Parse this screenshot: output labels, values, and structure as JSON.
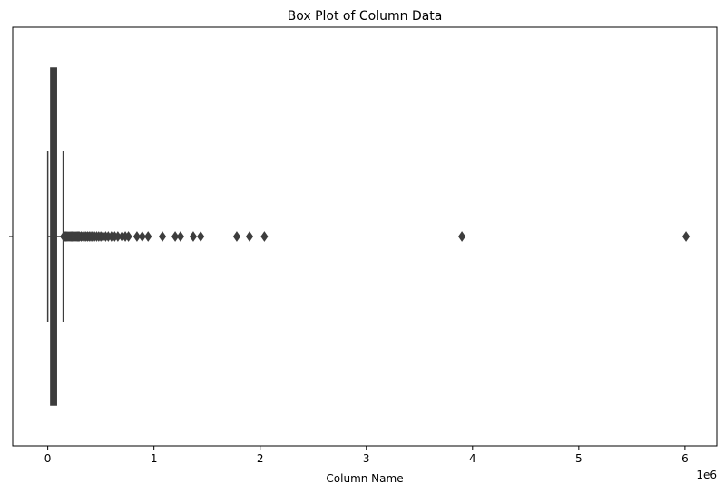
{
  "chart_data": {
    "type": "box",
    "title": "Box Plot of Column Data",
    "xlabel": "Column Name",
    "ylabel": "",
    "x_scale_label": "1e6",
    "xlim": [
      -330000,
      6300000
    ],
    "x_ticks": [
      0,
      1000000,
      2000000,
      3000000,
      4000000,
      5000000,
      6000000
    ],
    "x_tick_labels": [
      "0",
      "1",
      "2",
      "3",
      "4",
      "5",
      "6"
    ],
    "orientation": "horizontal",
    "grid": false,
    "legend": "none",
    "box": {
      "whisker_low": 0,
      "q1": 28000,
      "median": 52000,
      "q3": 82000,
      "whisker_high": 145000
    },
    "outliers": [
      150000,
      160000,
      170000,
      180000,
      190000,
      200000,
      210000,
      220000,
      230000,
      240000,
      250000,
      260000,
      270000,
      280000,
      290000,
      300000,
      315000,
      330000,
      345000,
      360000,
      375000,
      390000,
      405000,
      420000,
      440000,
      460000,
      480000,
      500000,
      520000,
      545000,
      570000,
      600000,
      630000,
      660000,
      700000,
      730000,
      760000,
      840000,
      890000,
      945000,
      1080000,
      1200000,
      1250000,
      1370000,
      1440000,
      1780000,
      1900000,
      2040000,
      3900000,
      6010000
    ],
    "colors": {
      "box_fill": "#3d3d3d",
      "line": "#3d3d3d",
      "outlier": "#3d3d3d",
      "axes": "#000000"
    }
  }
}
